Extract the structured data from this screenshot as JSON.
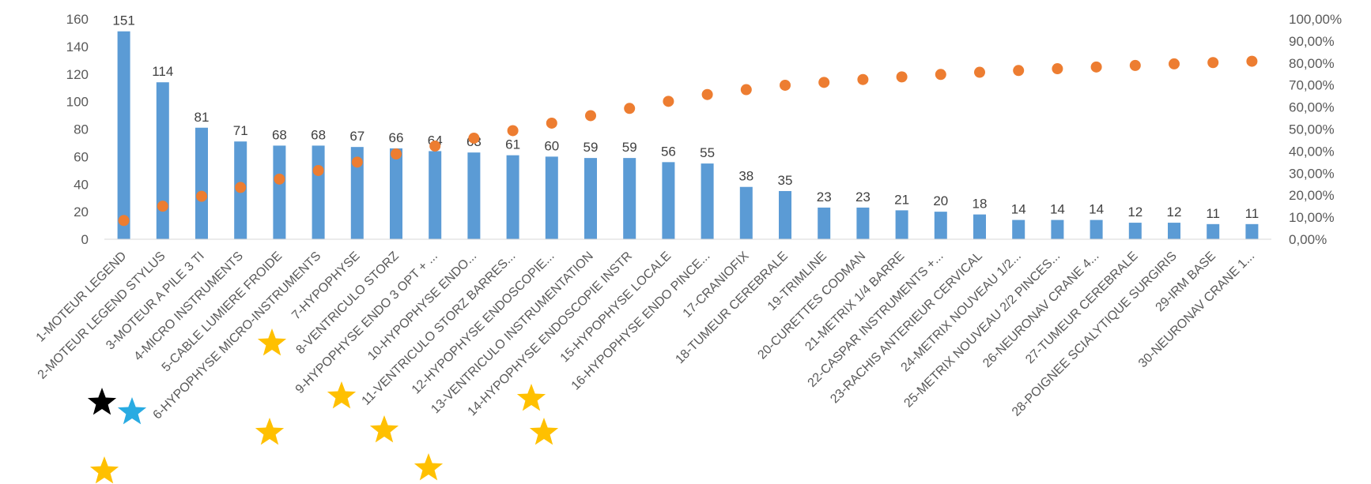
{
  "chart_data": {
    "type": "bar",
    "categories": [
      "1-MOTEUR LEGEND",
      "2-MOTEUR LEGEND STYLUS",
      "3-MOTEUR A PILE 3 TI",
      "4-MICRO INSTRUMENTS",
      "5-CABLE LUMIERE FROIDE",
      "6-HYPOPHYSE MICRO-INSTRUMENTS",
      "7-HYPOPHYSE",
      "8-VENTRICULO STORZ",
      "9-HYPOPHYSE ENDO 3 OPT + ...",
      "10-HYPOPHYSE ENDO...",
      "11-VENTRICULO STORZ BARRES...",
      "12-HYPOPHYSE ENDOSCOPIE...",
      "13-VENTRICULO INSTRUMENTATION",
      "14-HYPOPHYSE ENDOSCOPIE INSTR",
      "15-HYPOPHYSE LOCALE",
      "16-HYPOPHYSE ENDO PINCE...",
      "17-CRANIOFIX",
      "18-TUMEUR CEREBRALE",
      "19-TRIMLINE",
      "20-CURETTES CODMAN",
      "21-METRIX 1/4 BARRE",
      "22-CASPAR INSTRUMENTS +...",
      "23-RACHIS ANTERIEUR CERVICAL",
      "24-METRIX NOUVEAU 1/2...",
      "25-METRIX NOUVEAU 2/2 PINCES...",
      "26-NEURONAV CRANE 4...",
      "27-TUMEUR CEREBRALE",
      "28-POIGNEE SCIALYTIQUE SURGIRIS",
      "29-IRM BASE",
      "30-NEURONAV CRANE 1..."
    ],
    "series": [
      {
        "type": "bar",
        "axis": "left",
        "color": "#5b9bd5",
        "values": [
          151,
          114,
          81,
          71,
          68,
          68,
          67,
          66,
          64,
          63,
          61,
          60,
          59,
          59,
          56,
          55,
          38,
          35,
          23,
          23,
          21,
          20,
          18,
          14,
          14,
          14,
          12,
          12,
          11,
          11
        ],
        "data_labels": true
      },
      {
        "type": "scatter",
        "axis": "right",
        "color": "#ed7d31",
        "values": [
          8.5,
          15.0,
          19.5,
          23.5,
          27.3,
          31.2,
          35.0,
          38.7,
          42.3,
          45.9,
          49.3,
          52.7,
          56.1,
          59.4,
          62.6,
          65.7,
          67.9,
          69.9,
          71.2,
          72.5,
          73.7,
          74.8,
          75.8,
          76.6,
          77.4,
          78.2,
          78.9,
          79.6,
          80.2,
          80.8
        ]
      }
    ],
    "y_left": {
      "min": 0,
      "max": 160,
      "step": 20,
      "ticks": [
        "0",
        "20",
        "40",
        "60",
        "80",
        "100",
        "120",
        "140",
        "160"
      ]
    },
    "y_right": {
      "min": 0,
      "max": 100,
      "step": 10,
      "ticks": [
        "0,00%",
        "10,00%",
        "20,00%",
        "30,00%",
        "40,00%",
        "50,00%",
        "60,00%",
        "70,00%",
        "80,00%",
        "90,00%",
        "100,00%"
      ]
    },
    "grid": false,
    "legend": "none",
    "title": "",
    "xlabel": "",
    "ylabel": ""
  },
  "annotations": {
    "stars": [
      {
        "color": "#000000",
        "category_index": 0
      },
      {
        "color": "#29abe2",
        "category_index": 0
      },
      {
        "color": "#ffc000",
        "category_index": 0
      },
      {
        "color": "#ffc000",
        "category_index": 5
      },
      {
        "color": "#ffc000",
        "category_index": 5
      },
      {
        "color": "#ffc000",
        "category_index": 8
      },
      {
        "color": "#ffc000",
        "category_index": 9
      },
      {
        "color": "#ffc000",
        "category_index": 12
      },
      {
        "color": "#ffc000",
        "category_index": 13
      },
      {
        "color": "#ffc000",
        "category_index": 13
      }
    ]
  }
}
